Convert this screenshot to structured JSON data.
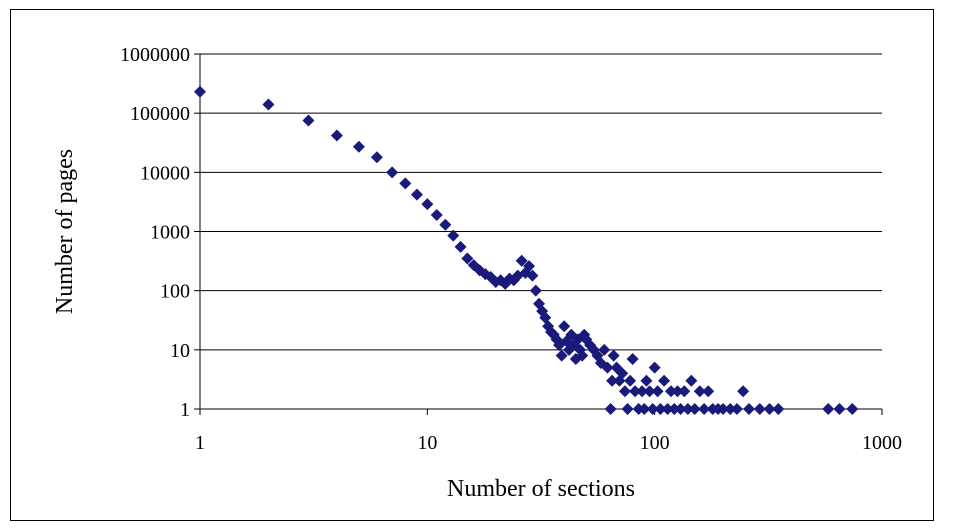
{
  "chart_data": {
    "type": "scatter",
    "title": "",
    "xlabel": "Number of sections",
    "ylabel": "Number of pages",
    "x_scale": "log",
    "y_scale": "log",
    "xlim": [
      1,
      1000
    ],
    "ylim": [
      1,
      1000000
    ],
    "x_ticks": [
      "1",
      "10",
      "100",
      "1000"
    ],
    "y_ticks": [
      "1",
      "10",
      "100",
      "1000",
      "10000",
      "100000",
      "1000000"
    ],
    "grid": "horizontal",
    "legend": "none",
    "marker": "diamond",
    "color": "#1a1a7a",
    "points": [
      [
        1,
        230000
      ],
      [
        2,
        140000
      ],
      [
        3,
        75000
      ],
      [
        4,
        42000
      ],
      [
        5,
        27000
      ],
      [
        6,
        18000
      ],
      [
        7,
        10000
      ],
      [
        8,
        6500
      ],
      [
        9,
        4200
      ],
      [
        10,
        2900
      ],
      [
        11,
        1900
      ],
      [
        12,
        1300
      ],
      [
        13,
        850
      ],
      [
        14,
        550
      ],
      [
        15,
        350
      ],
      [
        16,
        270
      ],
      [
        17,
        220
      ],
      [
        18,
        190
      ],
      [
        19,
        170
      ],
      [
        20,
        140
      ],
      [
        21,
        150
      ],
      [
        22,
        130
      ],
      [
        23,
        160
      ],
      [
        24,
        150
      ],
      [
        25,
        180
      ],
      [
        26,
        320
      ],
      [
        27,
        200
      ],
      [
        28,
        260
      ],
      [
        29,
        180
      ],
      [
        30,
        100
      ],
      [
        31,
        60
      ],
      [
        32,
        45
      ],
      [
        33,
        35
      ],
      [
        34,
        25
      ],
      [
        35,
        20
      ],
      [
        36,
        18
      ],
      [
        37,
        15
      ],
      [
        38,
        12
      ],
      [
        39,
        8
      ],
      [
        40,
        25
      ],
      [
        41,
        14
      ],
      [
        42,
        10
      ],
      [
        43,
        18
      ],
      [
        44,
        12
      ],
      [
        45,
        7
      ],
      [
        46,
        15
      ],
      [
        47,
        10
      ],
      [
        48,
        8
      ],
      [
        49,
        18
      ],
      [
        50,
        15
      ],
      [
        52,
        12
      ],
      [
        54,
        10
      ],
      [
        56,
        8
      ],
      [
        58,
        6
      ],
      [
        60,
        10
      ],
      [
        62,
        5
      ],
      [
        64,
        1
      ],
      [
        65,
        3
      ],
      [
        66,
        8
      ],
      [
        68,
        5
      ],
      [
        70,
        3
      ],
      [
        72,
        4
      ],
      [
        74,
        2
      ],
      [
        76,
        1
      ],
      [
        78,
        3
      ],
      [
        80,
        7
      ],
      [
        82,
        2
      ],
      [
        85,
        1
      ],
      [
        88,
        2
      ],
      [
        90,
        1
      ],
      [
        92,
        3
      ],
      [
        95,
        2
      ],
      [
        98,
        1
      ],
      [
        100,
        5
      ],
      [
        103,
        2
      ],
      [
        106,
        1
      ],
      [
        110,
        3
      ],
      [
        114,
        1
      ],
      [
        118,
        2
      ],
      [
        122,
        1
      ],
      [
        126,
        2
      ],
      [
        130,
        1
      ],
      [
        135,
        2
      ],
      [
        140,
        1
      ],
      [
        145,
        3
      ],
      [
        150,
        1
      ],
      [
        158,
        2
      ],
      [
        165,
        1
      ],
      [
        172,
        2
      ],
      [
        180,
        1
      ],
      [
        190,
        1
      ],
      [
        200,
        1
      ],
      [
        215,
        1
      ],
      [
        230,
        1
      ],
      [
        245,
        2
      ],
      [
        260,
        1
      ],
      [
        290,
        1
      ],
      [
        320,
        1
      ],
      [
        350,
        1
      ],
      [
        580,
        1
      ],
      [
        650,
        1
      ],
      [
        740,
        1
      ]
    ]
  }
}
